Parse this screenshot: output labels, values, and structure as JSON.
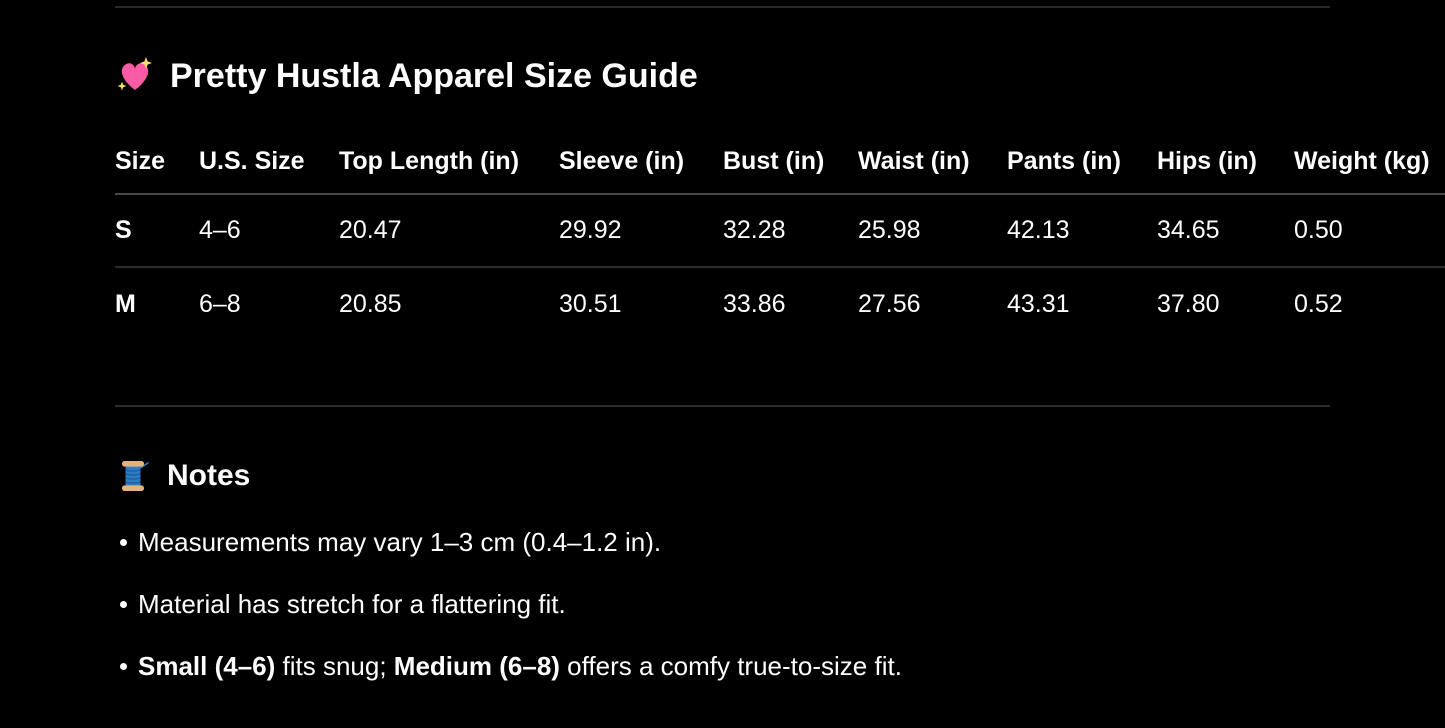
{
  "page": {
    "background": "#000000",
    "text_color": "#fdfdfd",
    "rule_color": "#2c2c2e",
    "header_rule_color": "#47474a"
  },
  "size_guide": {
    "icon": "sparkling-heart",
    "icon_char": "💖",
    "icon_colors": {
      "heart": "#fb5aa4",
      "sparkle": "#f8df63"
    },
    "title": "Pretty Hustla Apparel Size Guide",
    "table": {
      "columns": [
        "Size",
        "U.S. Size",
        "Top Length (in)",
        "Sleeve (in)",
        "Bust (in)",
        "Waist (in)",
        "Pants (in)",
        "Hips (in)",
        "Weight (kg)"
      ],
      "rows": [
        [
          "S",
          "4–6",
          "20.47",
          "29.92",
          "32.28",
          "25.98",
          "42.13",
          "34.65",
          "0.50"
        ],
        [
          "M",
          "6–8",
          "20.85",
          "30.51",
          "33.86",
          "27.56",
          "43.31",
          "37.80",
          "0.52"
        ]
      ]
    }
  },
  "notes": {
    "icon": "thread-spool",
    "icon_char": "🧵",
    "icon_colors": {
      "flange": "#e5b47e",
      "thread": "#2e7cc3",
      "thread_dark": "#1f5f9e"
    },
    "title": "Notes",
    "bullets": [
      {
        "segments": [
          {
            "text": "Measurements may vary 1–3 cm (0.4–1.2 in).",
            "bold": false
          }
        ]
      },
      {
        "segments": [
          {
            "text": "Material has stretch for a flattering fit.",
            "bold": false
          }
        ]
      },
      {
        "segments": [
          {
            "text": "Small (4–6)",
            "bold": true
          },
          {
            "text": " fits snug; ",
            "bold": false
          },
          {
            "text": "Medium (6–8)",
            "bold": true
          },
          {
            "text": " offers a comfy true-to-size fit.",
            "bold": false
          }
        ]
      }
    ]
  }
}
